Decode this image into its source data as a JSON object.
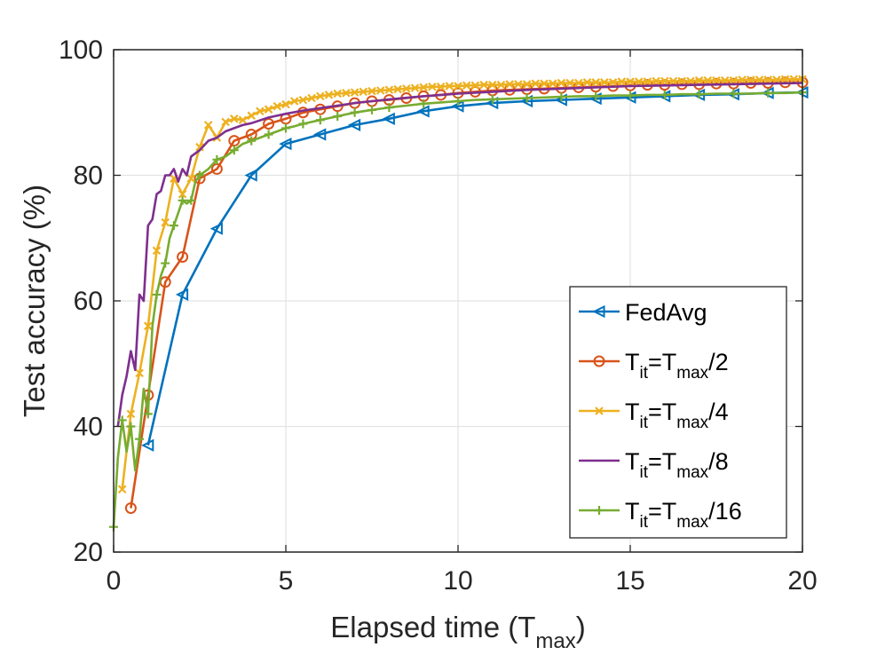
{
  "chart_data": {
    "type": "line",
    "xlabel": "Elapsed time (T",
    "xlabel_sub": "max",
    "xlabel_end": ")",
    "ylabel": "Test accuracy (%)",
    "xlim": [
      0,
      20
    ],
    "ylim": [
      20,
      100
    ],
    "xticks": [
      "0",
      "5",
      "10",
      "15",
      "20"
    ],
    "yticks": [
      "20",
      "40",
      "60",
      "80",
      "100"
    ],
    "grid": true,
    "legend_position": "bottom-right",
    "series": [
      {
        "name": "FedAvg",
        "legend_parts": [
          {
            "t": "FedAvg",
            "sub": false
          }
        ],
        "color": "#0072BD",
        "marker": "triangle-left",
        "marker_every": 1,
        "x": [
          1,
          2,
          3,
          4,
          5,
          6,
          7,
          8,
          9,
          10,
          11,
          12,
          13,
          14,
          15,
          16,
          17,
          18,
          19,
          20
        ],
        "y": [
          37,
          61,
          71.5,
          80,
          85,
          86.5,
          88,
          89,
          90.2,
          91,
          91.5,
          91.8,
          92,
          92.2,
          92.4,
          92.6,
          92.8,
          92.9,
          93.1,
          93.2
        ]
      },
      {
        "name": "Tit=Tmax/2",
        "legend_parts": [
          {
            "t": "T",
            "sub": false
          },
          {
            "t": "it",
            "sub": true
          },
          {
            "t": "=T",
            "sub": false
          },
          {
            "t": "max",
            "sub": true
          },
          {
            "t": "/2",
            "sub": false
          }
        ],
        "color": "#D95319",
        "marker": "circle",
        "marker_every": 1,
        "x": [
          0.5,
          1,
          1.5,
          2,
          2.5,
          3,
          3.5,
          4,
          4.5,
          5,
          5.5,
          6,
          6.5,
          7,
          7.5,
          8,
          8.5,
          9,
          9.5,
          10,
          10.5,
          11,
          11.5,
          12,
          12.5,
          13,
          13.5,
          14,
          14.5,
          15,
          15.5,
          16,
          16.5,
          17,
          17.5,
          18,
          18.5,
          19,
          19.5,
          20
        ],
        "y": [
          27,
          45,
          63,
          67,
          79.5,
          81,
          85.5,
          86.5,
          88.2,
          89,
          90,
          90.5,
          91,
          91.5,
          91.8,
          92,
          92.3,
          92.6,
          92.8,
          93.1,
          93.3,
          93.5,
          93.6,
          93.7,
          93.8,
          93.9,
          94,
          94.1,
          94.2,
          94.3,
          94.4,
          94.4,
          94.5,
          94.5,
          94.6,
          94.6,
          94.7,
          94.7,
          94.8,
          94.8
        ]
      },
      {
        "name": "Tit=Tmax/4",
        "legend_parts": [
          {
            "t": "T",
            "sub": false
          },
          {
            "t": "it",
            "sub": true
          },
          {
            "t": "=T",
            "sub": false
          },
          {
            "t": "max",
            "sub": true
          },
          {
            "t": "/4",
            "sub": false
          }
        ],
        "color": "#EDB120",
        "marker": "x",
        "marker_every": 1,
        "x": [
          0.25,
          0.5,
          0.75,
          1,
          1.25,
          1.5,
          1.75,
          2,
          2.25,
          2.5,
          2.75,
          3,
          3.25,
          3.5,
          3.75,
          4,
          4.25,
          4.5,
          4.75,
          5,
          5.25,
          5.5,
          5.75,
          6,
          6.25,
          6.5,
          6.75,
          7,
          7.25,
          7.5,
          7.75,
          8,
          8.25,
          8.5,
          8.75,
          9,
          9.25,
          9.5,
          9.75,
          10,
          10.25,
          10.5,
          10.75,
          11,
          11.25,
          11.5,
          11.75,
          12,
          12.25,
          12.5,
          12.75,
          13,
          13.25,
          13.5,
          13.75,
          14,
          14.25,
          14.5,
          14.75,
          15,
          15.25,
          15.5,
          15.75,
          16,
          16.25,
          16.5,
          16.75,
          17,
          17.25,
          17.5,
          17.75,
          18,
          18.25,
          18.5,
          18.75,
          19,
          19.25,
          19.5,
          19.75,
          20
        ],
        "y": [
          30,
          42,
          48.5,
          56,
          68,
          72.5,
          79.5,
          77,
          79.5,
          84.5,
          88,
          86,
          88.5,
          89,
          88.8,
          89.5,
          90.2,
          90.5,
          91,
          91.3,
          91.8,
          92,
          92.3,
          92.6,
          92.8,
          93,
          93.1,
          93.2,
          93.3,
          93.4,
          93.5,
          93.6,
          93.7,
          93.8,
          93.9,
          94,
          94.1,
          94.1,
          94.2,
          94.2,
          94.3,
          94.3,
          94.4,
          94.4,
          94.4,
          94.5,
          94.5,
          94.5,
          94.6,
          94.6,
          94.6,
          94.7,
          94.7,
          94.7,
          94.8,
          94.8,
          94.8,
          94.8,
          94.9,
          94.9,
          94.9,
          94.9,
          95,
          95,
          95,
          95,
          95,
          95.1,
          95.1,
          95.1,
          95.1,
          95.1,
          95.2,
          95.2,
          95.2,
          95.2,
          95.2,
          95.3,
          95.3,
          95.3
        ]
      },
      {
        "name": "Tit=Tmax/8",
        "legend_parts": [
          {
            "t": "T",
            "sub": false
          },
          {
            "t": "it",
            "sub": true
          },
          {
            "t": "=T",
            "sub": false
          },
          {
            "t": "max",
            "sub": true
          },
          {
            "t": "/8",
            "sub": false
          }
        ],
        "color": "#7E2F8E",
        "marker": "none",
        "marker_every": 1,
        "x": [
          0.125,
          0.25,
          0.375,
          0.5,
          0.625,
          0.75,
          0.875,
          1,
          1.125,
          1.25,
          1.375,
          1.5,
          1.625,
          1.75,
          1.875,
          2,
          2.125,
          2.25,
          2.5,
          2.75,
          3,
          3.25,
          3.5,
          3.75,
          4,
          4.5,
          5,
          5.5,
          6,
          6.5,
          7,
          7.5,
          8,
          9,
          10,
          11,
          12,
          13,
          14,
          15,
          16,
          17,
          18,
          19,
          20
        ],
        "y": [
          40,
          45,
          48,
          52,
          49,
          61,
          60,
          72,
          73,
          77,
          77.5,
          80,
          80,
          81,
          79,
          81,
          80,
          83,
          84,
          85.5,
          86,
          87,
          87.5,
          88,
          88.3,
          89.2,
          89.8,
          90.3,
          90.7,
          91.1,
          91.5,
          91.8,
          92.1,
          92.6,
          93,
          93.3,
          93.6,
          93.8,
          94,
          94.2,
          94.3,
          94.4,
          94.5,
          94.6,
          94.7
        ]
      },
      {
        "name": "Tit=Tmax/16",
        "legend_parts": [
          {
            "t": "T",
            "sub": false
          },
          {
            "t": "it",
            "sub": true
          },
          {
            "t": "=T",
            "sub": false
          },
          {
            "t": "max",
            "sub": true
          },
          {
            "t": "/16",
            "sub": false
          }
        ],
        "color": "#77AC30",
        "marker": "plus",
        "marker_every": 2,
        "x": [
          0,
          0.125,
          0.25,
          0.375,
          0.5,
          0.625,
          0.75,
          0.875,
          1,
          1.125,
          1.25,
          1.375,
          1.5,
          1.625,
          1.75,
          1.875,
          2,
          2.125,
          2.25,
          2.375,
          2.5,
          2.75,
          3,
          3.25,
          3.5,
          3.75,
          4,
          4.25,
          4.5,
          4.75,
          5,
          5.25,
          5.5,
          5.75,
          6,
          6.25,
          6.5,
          6.75,
          7,
          7.25,
          7.5,
          7.75,
          8,
          8.5,
          9,
          9.5,
          10,
          10.5,
          11,
          11.5,
          12,
          12.5,
          13,
          13.5,
          14,
          14.5,
          15,
          15.5,
          16,
          16.5,
          17,
          17.5,
          18,
          18.5,
          19,
          19.5,
          20
        ],
        "y": [
          24,
          35,
          41,
          36,
          40,
          33,
          38,
          46,
          42,
          56,
          61,
          64,
          66,
          70,
          72,
          74,
          76,
          75.5,
          76,
          79,
          80,
          81,
          82.5,
          83,
          84,
          85,
          85.5,
          86,
          86.5,
          87,
          87.5,
          87.8,
          88.2,
          88.5,
          88.8,
          89.1,
          89.4,
          89.7,
          90,
          90.2,
          90.4,
          90.6,
          90.8,
          91.1,
          91.4,
          91.6,
          91.8,
          92,
          92.1,
          92.2,
          92.3,
          92.4,
          92.5,
          92.6,
          92.6,
          92.7,
          92.7,
          92.8,
          92.8,
          92.9,
          92.9,
          93,
          93,
          93,
          93.1,
          93.1,
          93.2
        ]
      }
    ]
  }
}
